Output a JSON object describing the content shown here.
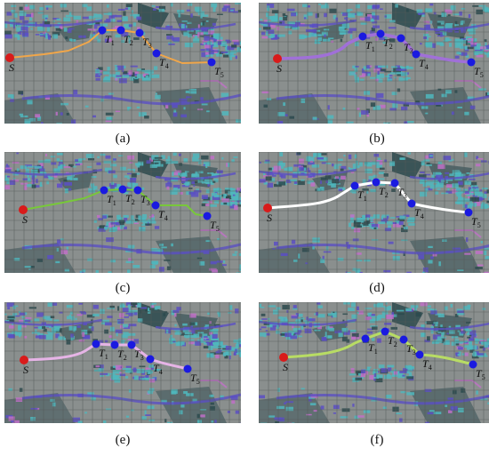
{
  "colors": {
    "map_bg": "#8a8f8e",
    "grid": "#545a59",
    "start_marker": "#d81b1b",
    "target_marker": "#1a1ae0",
    "obstacle_teal": "#4fb7bd",
    "obstacle_dark": "#2c4a4e",
    "obstacle_purple": "#5a4fc4",
    "obstacle_pink": "#c070c8"
  },
  "panels": [
    {
      "id": "a",
      "caption": "(a)",
      "path_color": "#f0a64a",
      "path_width": 2
    },
    {
      "id": "b",
      "caption": "(b)",
      "path_color": "#a070d8",
      "path_width": 3.5
    },
    {
      "id": "c",
      "caption": "(c)",
      "path_color": "#78c83a",
      "path_width": 2
    },
    {
      "id": "d",
      "caption": "(d)",
      "path_color": "#ffffff",
      "path_width": 3
    },
    {
      "id": "e",
      "caption": "(e)",
      "path_color": "#e6b4e6",
      "path_width": 3
    },
    {
      "id": "f",
      "caption": "(f)",
      "path_color": "#b8dc64",
      "path_width": 3
    }
  ],
  "markers": {
    "start": {
      "text": "S",
      "sub": ""
    },
    "targets": [
      {
        "text": "T",
        "sub": "1"
      },
      {
        "text": "T",
        "sub": "2"
      },
      {
        "text": "T",
        "sub": "3"
      },
      {
        "text": "T",
        "sub": "4"
      },
      {
        "text": "T",
        "sub": "5"
      }
    ]
  }
}
